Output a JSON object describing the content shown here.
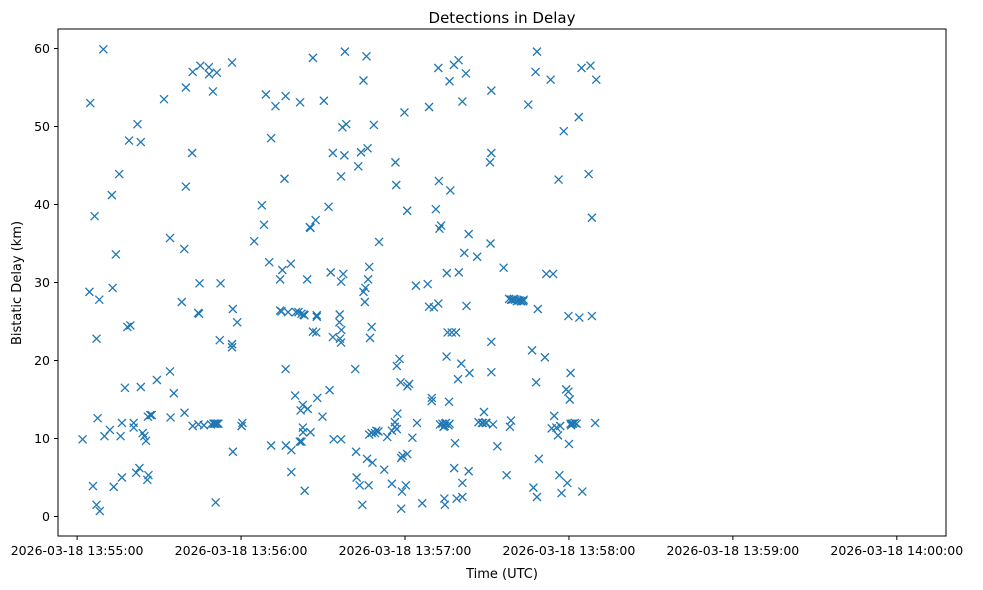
{
  "chart_data": {
    "type": "scatter",
    "title": "Detections in Delay",
    "xlabel": "Time (UTC)",
    "ylabel": "Bistatic Delay (km)",
    "xlim": [
      "2026-03-18 13:54:53",
      "2026-03-18 14:00:18"
    ],
    "ylim": [
      -2.5,
      62.5
    ],
    "x_ticks": [
      "2026-03-18 13:55:00",
      "2026-03-18 13:56:00",
      "2026-03-18 13:57:00",
      "2026-03-18 13:58:00",
      "2026-03-18 13:59:00",
      "2026-03-18 14:00:00"
    ],
    "y_ticks": [
      0,
      10,
      20,
      30,
      40,
      50,
      60
    ],
    "grid": false,
    "marker": "x",
    "color": "#1f77b4",
    "x_unit": "seconds after 2026-03-18 13:55:00",
    "points": [
      [
        2.0,
        9.9
      ],
      [
        4.5,
        28.8
      ],
      [
        4.8,
        53.0
      ],
      [
        5.8,
        3.9
      ],
      [
        6.4,
        38.5
      ],
      [
        7.1,
        22.8
      ],
      [
        7.1,
        1.5
      ],
      [
        7.5,
        12.6
      ],
      [
        8.1,
        27.8
      ],
      [
        8.3,
        0.7
      ],
      [
        9.6,
        59.9
      ],
      [
        10.0,
        10.3
      ],
      [
        12.0,
        11.1
      ],
      [
        12.7,
        41.2
      ],
      [
        13.0,
        29.3
      ],
      [
        13.4,
        3.8
      ],
      [
        14.2,
        33.6
      ],
      [
        15.4,
        43.9
      ],
      [
        15.9,
        10.3
      ],
      [
        16.4,
        12.0
      ],
      [
        16.4,
        5.0
      ],
      [
        17.5,
        16.5
      ],
      [
        18.4,
        24.3
      ],
      [
        19.0,
        48.2
      ],
      [
        19.5,
        24.5
      ],
      [
        20.7,
        11.4
      ],
      [
        20.7,
        12.0
      ],
      [
        21.6,
        5.6
      ],
      [
        22.1,
        50.3
      ],
      [
        22.8,
        6.2
      ],
      [
        23.3,
        48.0
      ],
      [
        23.3,
        16.6
      ],
      [
        24.0,
        10.7
      ],
      [
        24.6,
        10.3
      ],
      [
        25.2,
        9.7
      ],
      [
        25.7,
        4.7
      ],
      [
        25.9,
        12.8
      ],
      [
        26.1,
        5.3
      ],
      [
        26.8,
        13.0
      ],
      [
        27.3,
        13.0
      ],
      [
        29.2,
        17.5
      ],
      [
        31.8,
        53.5
      ],
      [
        34.0,
        35.7
      ],
      [
        34.0,
        18.6
      ],
      [
        34.2,
        12.7
      ],
      [
        35.4,
        15.8
      ],
      [
        38.3,
        27.5
      ],
      [
        39.2,
        34.3
      ],
      [
        39.3,
        13.3
      ],
      [
        39.8,
        55.0
      ],
      [
        39.8,
        42.3
      ],
      [
        42.1,
        46.6
      ],
      [
        42.3,
        57.0
      ],
      [
        42.3,
        11.6
      ],
      [
        44.3,
        26.1
      ],
      [
        44.4,
        11.8
      ],
      [
        44.6,
        26.0
      ],
      [
        44.8,
        29.9
      ],
      [
        45.1,
        57.8
      ],
      [
        46.4,
        11.7
      ],
      [
        48.2,
        57.6
      ],
      [
        48.3,
        56.7
      ],
      [
        49.0,
        11.8
      ],
      [
        49.7,
        54.5
      ],
      [
        49.9,
        11.9
      ],
      [
        50.3,
        11.9
      ],
      [
        50.7,
        11.9
      ],
      [
        50.7,
        1.8
      ],
      [
        51.1,
        56.9
      ],
      [
        51.3,
        11.9
      ],
      [
        51.7,
        11.9
      ],
      [
        52.2,
        22.6
      ],
      [
        52.5,
        29.9
      ],
      [
        56.7,
        58.2
      ],
      [
        56.7,
        21.7
      ],
      [
        56.7,
        22.1
      ],
      [
        57.0,
        26.6
      ],
      [
        57.0,
        8.3
      ],
      [
        58.6,
        24.9
      ],
      [
        60.2,
        11.6
      ],
      [
        60.5,
        12.0
      ],
      [
        64.8,
        35.3
      ],
      [
        67.6,
        39.9
      ],
      [
        68.4,
        37.4
      ],
      [
        69.1,
        54.1
      ],
      [
        70.3,
        32.6
      ],
      [
        71.0,
        48.5
      ],
      [
        71.0,
        9.1
      ],
      [
        72.6,
        52.6
      ],
      [
        74.3,
        30.4
      ],
      [
        74.3,
        26.4
      ],
      [
        74.8,
        26.3
      ],
      [
        75.1,
        31.6
      ],
      [
        75.9,
        43.3
      ],
      [
        76.3,
        18.9
      ],
      [
        76.4,
        9.1
      ],
      [
        76.3,
        53.9
      ],
      [
        77.2,
        26.2
      ],
      [
        78.2,
        32.4
      ],
      [
        78.4,
        8.5
      ],
      [
        78.4,
        5.7
      ],
      [
        79.8,
        15.5
      ],
      [
        80.1,
        26.2
      ],
      [
        81.0,
        26.2
      ],
      [
        81.5,
        9.6
      ],
      [
        81.6,
        53.1
      ],
      [
        81.8,
        13.6
      ],
      [
        82.1,
        9.6
      ],
      [
        82.1,
        26.0
      ],
      [
        82.6,
        14.3
      ],
      [
        82.6,
        11.4
      ],
      [
        82.7,
        10.8
      ],
      [
        82.9,
        25.9
      ],
      [
        83.2,
        25.8
      ],
      [
        83.3,
        3.3
      ],
      [
        84.2,
        30.4
      ],
      [
        84.4,
        13.8
      ],
      [
        85.2,
        37.1
      ],
      [
        85.4,
        37.0
      ],
      [
        85.4,
        10.8
      ],
      [
        86.3,
        58.8
      ],
      [
        86.3,
        23.7
      ],
      [
        87.3,
        38.0
      ],
      [
        87.5,
        23.6
      ],
      [
        87.7,
        25.8
      ],
      [
        87.7,
        25.6
      ],
      [
        87.9,
        15.2
      ],
      [
        89.8,
        12.8
      ],
      [
        90.3,
        53.3
      ],
      [
        92.0,
        39.7
      ],
      [
        92.4,
        16.2
      ],
      [
        92.8,
        31.3
      ],
      [
        93.6,
        46.6
      ],
      [
        93.6,
        23.0
      ],
      [
        93.9,
        9.9
      ],
      [
        96.0,
        24.9
      ],
      [
        96.1,
        25.9
      ],
      [
        96.2,
        22.8
      ],
      [
        96.6,
        30.1
      ],
      [
        96.6,
        43.6
      ],
      [
        96.6,
        22.3
      ],
      [
        96.6,
        9.9
      ],
      [
        96.7,
        23.9
      ],
      [
        97.1,
        49.9
      ],
      [
        97.4,
        31.1
      ],
      [
        97.8,
        46.3
      ],
      [
        98.0,
        59.6
      ],
      [
        98.5,
        50.3
      ],
      [
        101.8,
        18.9
      ],
      [
        102.1,
        8.3
      ],
      [
        102.3,
        5.0
      ],
      [
        102.9,
        44.9
      ],
      [
        103.4,
        4.0
      ],
      [
        103.9,
        46.7
      ],
      [
        104.4,
        1.5
      ],
      [
        104.8,
        55.9
      ],
      [
        104.8,
        28.8
      ],
      [
        105.3,
        27.5
      ],
      [
        105.5,
        29.3
      ],
      [
        105.9,
        59.0
      ],
      [
        106.1,
        7.4
      ],
      [
        106.3,
        47.2
      ],
      [
        106.5,
        30.4
      ],
      [
        106.7,
        4.0
      ],
      [
        106.9,
        10.5
      ],
      [
        106.9,
        32.0
      ],
      [
        107.2,
        22.9
      ],
      [
        107.8,
        24.3
      ],
      [
        107.8,
        10.7
      ],
      [
        108.1,
        6.9
      ],
      [
        108.6,
        50.2
      ],
      [
        109.0,
        10.7
      ],
      [
        109.5,
        11.0
      ],
      [
        110.3,
        10.9
      ],
      [
        110.5,
        35.2
      ],
      [
        112.4,
        6.0
      ],
      [
        113.5,
        10.2
      ],
      [
        115.2,
        11.0
      ],
      [
        115.2,
        4.2
      ],
      [
        116.3,
        12.1
      ],
      [
        116.3,
        11.5
      ],
      [
        116.5,
        45.4
      ],
      [
        116.8,
        42.5
      ],
      [
        117.0,
        11.2
      ],
      [
        117.0,
        19.3
      ],
      [
        117.2,
        13.2
      ],
      [
        118.0,
        20.2
      ],
      [
        118.4,
        17.2
      ],
      [
        118.6,
        7.5
      ],
      [
        118.6,
        1.0
      ],
      [
        118.9,
        3.2
      ],
      [
        119.1,
        7.8
      ],
      [
        119.8,
        51.8
      ],
      [
        120.3,
        4.0
      ],
      [
        120.8,
        39.2
      ],
      [
        120.8,
        8.0
      ],
      [
        120.9,
        16.7
      ],
      [
        121.5,
        17.0
      ],
      [
        122.7,
        10.1
      ],
      [
        124.0,
        29.6
      ],
      [
        124.4,
        12.0
      ],
      [
        126.3,
        1.7
      ],
      [
        128.3,
        29.8
      ],
      [
        128.8,
        52.5
      ],
      [
        128.8,
        26.9
      ],
      [
        129.8,
        15.2
      ],
      [
        129.8,
        14.8
      ],
      [
        130.6,
        26.8
      ],
      [
        131.3,
        39.4
      ],
      [
        132.2,
        57.5
      ],
      [
        132.2,
        27.3
      ],
      [
        132.4,
        43.0
      ],
      [
        132.6,
        36.9
      ],
      [
        132.8,
        11.8
      ],
      [
        133.2,
        37.3
      ],
      [
        133.7,
        11.9
      ],
      [
        134.1,
        11.5
      ],
      [
        134.4,
        2.3
      ],
      [
        134.5,
        11.6
      ],
      [
        134.6,
        1.5
      ],
      [
        134.7,
        11.9
      ],
      [
        135.0,
        12.0
      ],
      [
        135.2,
        20.5
      ],
      [
        135.3,
        31.2
      ],
      [
        135.6,
        23.6
      ],
      [
        135.9,
        11.7
      ],
      [
        136.1,
        14.7
      ],
      [
        136.3,
        55.8
      ],
      [
        136.3,
        11.9
      ],
      [
        136.6,
        41.8
      ],
      [
        137.1,
        23.6
      ],
      [
        137.9,
        57.9
      ],
      [
        138.0,
        6.2
      ],
      [
        138.3,
        9.4
      ],
      [
        138.7,
        23.6
      ],
      [
        138.9,
        2.3
      ],
      [
        139.4,
        17.6
      ],
      [
        139.6,
        58.5
      ],
      [
        139.7,
        31.3
      ],
      [
        140.6,
        19.6
      ],
      [
        141.0,
        2.5
      ],
      [
        141.0,
        53.2
      ],
      [
        141.0,
        4.3
      ],
      [
        141.7,
        33.8
      ],
      [
        142.3,
        56.8
      ],
      [
        142.5,
        27.0
      ],
      [
        143.3,
        5.8
      ],
      [
        143.3,
        36.2
      ],
      [
        143.6,
        18.4
      ],
      [
        146.4,
        33.3
      ],
      [
        146.9,
        12.1
      ],
      [
        148.2,
        12.0
      ],
      [
        148.5,
        12.0
      ],
      [
        148.9,
        13.4
      ],
      [
        149.5,
        12.0
      ],
      [
        149.8,
        12.0
      ],
      [
        151.1,
        45.4
      ],
      [
        151.3,
        35.0
      ],
      [
        151.6,
        54.6
      ],
      [
        151.6,
        46.6
      ],
      [
        151.6,
        22.4
      ],
      [
        151.6,
        18.5
      ],
      [
        152.2,
        11.8
      ],
      [
        153.8,
        9.0
      ],
      [
        156.1,
        31.9
      ],
      [
        157.2,
        5.3
      ],
      [
        158.1,
        27.9
      ],
      [
        158.4,
        11.5
      ],
      [
        158.8,
        12.3
      ],
      [
        158.8,
        27.8
      ],
      [
        159.3,
        27.8
      ],
      [
        159.8,
        27.9
      ],
      [
        160.3,
        27.8
      ],
      [
        160.9,
        27.6
      ],
      [
        161.4,
        27.7
      ],
      [
        161.9,
        27.7
      ],
      [
        162.4,
        27.6
      ],
      [
        162.6,
        27.6
      ],
      [
        163.3,
        27.6
      ],
      [
        163.4,
        27.8
      ],
      [
        165.1,
        52.8
      ],
      [
        166.5,
        21.3
      ],
      [
        167.0,
        3.7
      ],
      [
        167.8,
        57.0
      ],
      [
        168.0,
        17.2
      ],
      [
        168.3,
        2.5
      ],
      [
        168.3,
        59.6
      ],
      [
        168.6,
        26.6
      ],
      [
        169.0,
        7.4
      ],
      [
        171.2,
        20.4
      ],
      [
        171.7,
        31.1
      ],
      [
        173.3,
        56.0
      ],
      [
        173.7,
        11.3
      ],
      [
        174.2,
        31.1
      ],
      [
        174.6,
        12.9
      ],
      [
        175.4,
        11.4
      ],
      [
        176.0,
        10.4
      ],
      [
        176.2,
        43.2
      ],
      [
        176.5,
        5.3
      ],
      [
        176.8,
        11.6
      ],
      [
        177.3,
        3.0
      ],
      [
        178.1,
        49.4
      ],
      [
        179.0,
        16.3
      ],
      [
        179.4,
        4.3
      ],
      [
        179.8,
        25.7
      ],
      [
        179.8,
        16.0
      ],
      [
        180.0,
        9.3
      ],
      [
        180.3,
        15.0
      ],
      [
        180.6,
        18.4
      ],
      [
        180.6,
        11.9
      ],
      [
        180.8,
        11.7
      ],
      [
        181.2,
        11.9
      ],
      [
        181.5,
        11.9
      ],
      [
        182.1,
        12.0
      ],
      [
        182.8,
        11.9
      ],
      [
        183.6,
        51.2
      ],
      [
        183.8,
        25.5
      ],
      [
        184.6,
        57.5
      ],
      [
        184.9,
        3.2
      ],
      [
        187.2,
        43.9
      ],
      [
        187.9,
        57.8
      ],
      [
        188.4,
        38.3
      ],
      [
        188.4,
        25.7
      ],
      [
        189.6,
        12.0
      ],
      [
        190.0,
        56.0
      ]
    ]
  }
}
